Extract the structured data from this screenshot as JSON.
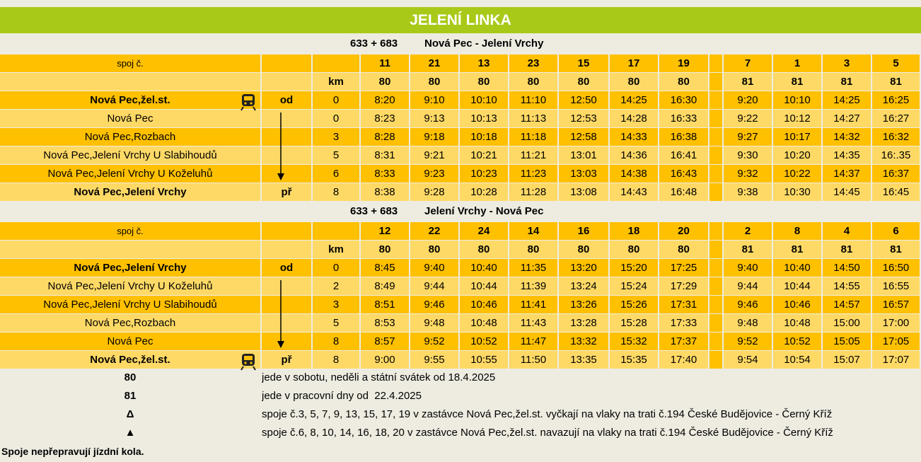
{
  "title": "JELENÍ LINKA",
  "sections": [
    {
      "line": "633 + 683",
      "route": "Nová Pec - Jelení Vrchy",
      "trip_label": "spoj č.",
      "km_label": "km",
      "trips": [
        "11",
        "21",
        "13",
        "23",
        "15",
        "17",
        "19",
        "7",
        "1",
        "3",
        "5"
      ],
      "days": [
        "80",
        "80",
        "80",
        "80",
        "80",
        "80",
        "80",
        "81",
        "81",
        "81",
        "81"
      ],
      "stops": [
        {
          "name": "Nová Pec,žel.st.",
          "mark": "od",
          "km": "0",
          "times": [
            "8:20",
            "9:10",
            "10:10",
            "11:10",
            "12:50",
            "14:25",
            "16:30",
            "9:20",
            "10:10",
            "14:25",
            "16:25"
          ]
        },
        {
          "name": "Nová Pec",
          "km": "0",
          "times": [
            "8:23",
            "9:13",
            "10:13",
            "11:13",
            "12:53",
            "14:28",
            "16:33",
            "9:22",
            "10:12",
            "14:27",
            "16:27"
          ]
        },
        {
          "name": "Nová Pec,Rozbach",
          "km": "3",
          "times": [
            "8:28",
            "9:18",
            "10:18",
            "11:18",
            "12:58",
            "14:33",
            "16:38",
            "9:27",
            "10:17",
            "14:32",
            "16:32"
          ]
        },
        {
          "name": "Nová Pec,Jelení Vrchy U Slabihoudů",
          "km": "5",
          "times": [
            "8:31",
            "9:21",
            "10:21",
            "11:21",
            "13:01",
            "14:36",
            "16:41",
            "9:30",
            "10:20",
            "14:35",
            "16:.35"
          ]
        },
        {
          "name": "Nová Pec,Jelení Vrchy U Koželuhů",
          "km": "6",
          "times": [
            "8:33",
            "9:23",
            "10:23",
            "11:23",
            "13:03",
            "14:38",
            "16:43",
            "9:32",
            "10:22",
            "14:37",
            "16:37"
          ]
        },
        {
          "name": "Nová Pec,Jelení Vrchy",
          "mark": "př",
          "km": "8",
          "times": [
            "8:38",
            "9:28",
            "10:28",
            "11:28",
            "13:08",
            "14:43",
            "16:48",
            "9:38",
            "10:30",
            "14:45",
            "16:45"
          ]
        }
      ]
    },
    {
      "line": "633 + 683",
      "route": "Jelení Vrchy - Nová Pec",
      "trip_label": "spoj č.",
      "km_label": "km",
      "trips": [
        "12",
        "22",
        "24",
        "14",
        "16",
        "18",
        "20",
        "2",
        "8",
        "4",
        "6"
      ],
      "days": [
        "80",
        "80",
        "80",
        "80",
        "80",
        "80",
        "80",
        "81",
        "81",
        "81",
        "81"
      ],
      "stops": [
        {
          "name": "Nová Pec,Jelení Vrchy",
          "mark": "od",
          "km": "0",
          "times": [
            "8:45",
            "9:40",
            "10:40",
            "11:35",
            "13:20",
            "15:20",
            "17:25",
            "9:40",
            "10:40",
            "14:50",
            "16:50"
          ]
        },
        {
          "name": "Nová Pec,Jelení Vrchy U Koželuhů",
          "km": "2",
          "times": [
            "8:49",
            "9:44",
            "10:44",
            "11:39",
            "13:24",
            "15:24",
            "17:29",
            "9:44",
            "10:44",
            "14:55",
            "16:55"
          ]
        },
        {
          "name": "Nová Pec,Jelení Vrchy U Slabihoudů",
          "km": "3",
          "times": [
            "8:51",
            "9:46",
            "10:46",
            "11:41",
            "13:26",
            "15:26",
            "17:31",
            "9:46",
            "10:46",
            "14:57",
            "16:57"
          ]
        },
        {
          "name": "Nová Pec,Rozbach",
          "km": "5",
          "times": [
            "8:53",
            "9:48",
            "10:48",
            "11:43",
            "13:28",
            "15:28",
            "17:33",
            "9:48",
            "10:48",
            "15:00",
            "17:00"
          ]
        },
        {
          "name": "Nová Pec",
          "km": "8",
          "times": [
            "8:57",
            "9:52",
            "10:52",
            "11:47",
            "13:32",
            "15:32",
            "17:37",
            "9:52",
            "10:52",
            "15:05",
            "17:05"
          ]
        },
        {
          "name": "Nová Pec,žel.st.",
          "mark": "př",
          "km": "8",
          "times": [
            "9:00",
            "9:55",
            "10:55",
            "11:50",
            "13:35",
            "15:35",
            "17:40",
            "9:54",
            "10:54",
            "15:07",
            "17:07"
          ]
        }
      ]
    }
  ],
  "footnotes": [
    {
      "symbol": "80",
      "text": "jede v sobotu, neděli a státní svátek od 18.4.2025"
    },
    {
      "symbol": "81",
      "text": "jede v pracovní dny od  22.4.2025"
    },
    {
      "symbol": "Δ",
      "text": "spoje č.3, 5, 7, 9, 13, 15, 17, 19 v zastávce Nová Pec,žel.st. vyčkají na vlaky na trati č.194 České Budějovice - Černý Kříž"
    },
    {
      "symbol": "▲",
      "text": "spoje č.6, 8, 10, 14, 16, 18, 20 v zastávce Nová Pec,žel.st. navazují na vlaky na trati č.194 České Budějovice - Černý Kříž"
    }
  ],
  "note": "Spoje nepřepravují jízdní kola."
}
